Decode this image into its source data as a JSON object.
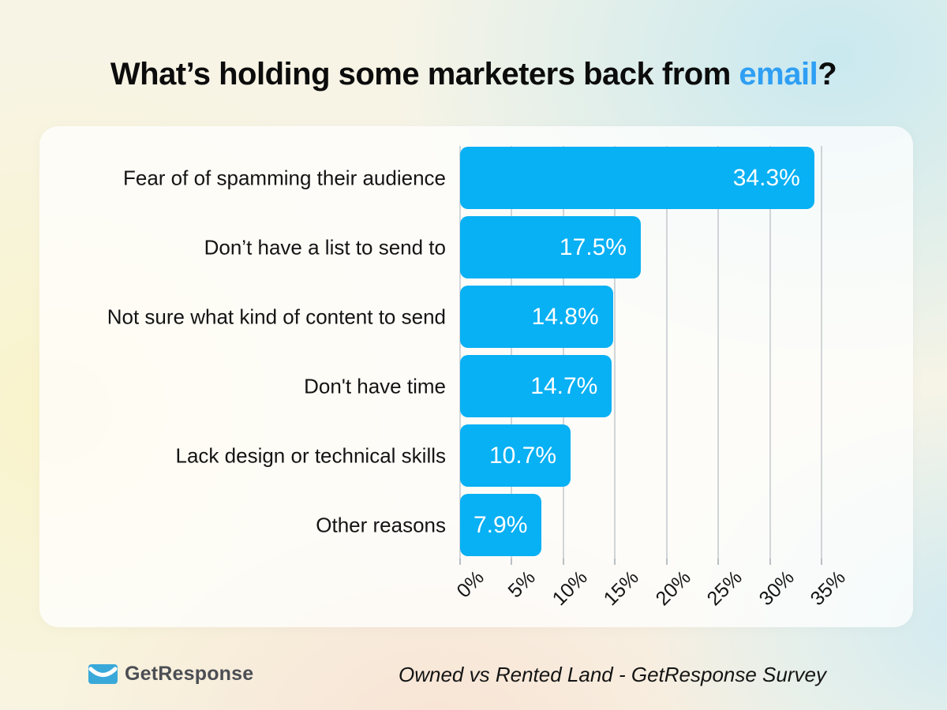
{
  "page": {
    "title": {
      "prefix": "What’s holding some marketers back from ",
      "highlight": "email",
      "suffix": "?"
    }
  },
  "chart_data": {
    "type": "bar",
    "orientation": "horizontal",
    "title": "What’s holding some marketers back from email?",
    "categories": [
      "Fear of of spamming their audience",
      "Don’t have a list to send to",
      "Not sure what kind of content to send",
      "Don't have time",
      "Lack design or technical skills",
      "Other reasons"
    ],
    "values": [
      34.3,
      17.5,
      14.8,
      14.7,
      10.7,
      7.9
    ],
    "value_labels": [
      "34.3%",
      "17.5%",
      "14.8%",
      "14.7%",
      "10.7%",
      "7.9%"
    ],
    "xlabel": "",
    "ylabel": "",
    "xlim": [
      0,
      35
    ],
    "x_ticks": [
      0,
      5,
      10,
      15,
      20,
      25,
      30,
      35
    ],
    "x_tick_labels": [
      "0%",
      "5%",
      "10%",
      "15%",
      "20%",
      "25%",
      "30%",
      "35%"
    ],
    "grid": true,
    "legend": false,
    "bar_color": "#08b0f4",
    "value_label_color": "#ffffff"
  },
  "footer": {
    "brand": "GetResponse",
    "logo_icon": "envelope-smile-icon",
    "source": "Owned vs Rented Land - GetResponse Survey"
  },
  "colors": {
    "highlight_blue": "#2e9ff4",
    "bar_blue": "#08b0f4",
    "logo_blue": "#3aa9da",
    "gridline": "#c5cbce",
    "text_dark": "#141414",
    "brand_text": "#4b4e54"
  }
}
